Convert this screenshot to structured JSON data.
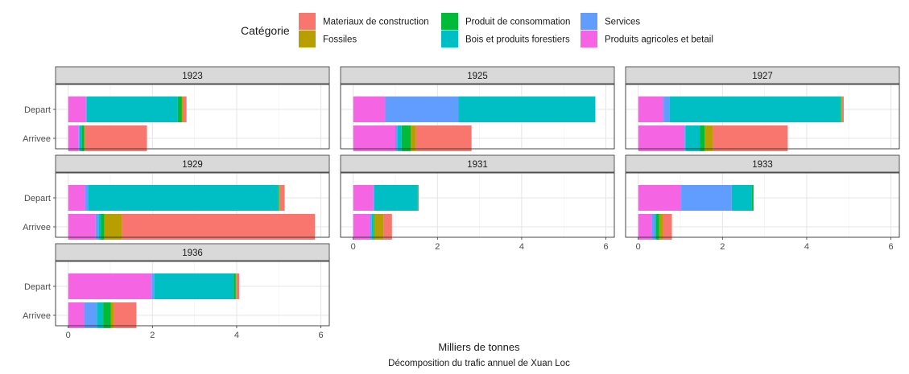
{
  "chart_data": {
    "type": "bar",
    "orientation": "horizontal",
    "stacked": true,
    "facet_variable": "year",
    "legend": {
      "title": "Catégorie",
      "position": "top",
      "entries": [
        {
          "name": "Materiaux de construction",
          "color": "#F8766D"
        },
        {
          "name": "Fossiles",
          "color": "#B79F00"
        },
        {
          "name": "Produit de consommation",
          "color": "#00BA38"
        },
        {
          "name": "Bois et produits forestiers",
          "color": "#00BFC4"
        },
        {
          "name": "Services",
          "color": "#619CFF"
        },
        {
          "name": "Produits agricoles et betail",
          "color": "#F564E3"
        }
      ]
    },
    "stack_order": [
      "Produits agricoles et betail",
      "Services",
      "Bois et produits forestiers",
      "Produit de consommation",
      "Fossiles",
      "Materiaux de construction"
    ],
    "categories": [
      "Depart",
      "Arrivee"
    ],
    "xlabel": "Milliers de tonnes",
    "caption": "Décomposition du trafic annuel de Xuan Loc",
    "xlim": [
      -0.3,
      6.2
    ],
    "x_ticks": [
      0,
      2,
      4,
      6
    ],
    "grid": true,
    "panels": [
      {
        "year": "1923",
        "bars": {
          "Depart": {
            "Produits agricoles et betail": 0.42,
            "Services": 0.02,
            "Bois et produits forestiers": 2.16,
            "Produit de consommation": 0.1,
            "Fossiles": 0.02,
            "Materiaux de construction": 0.09
          },
          "Arrivee": {
            "Produits agricoles et betail": 0.25,
            "Services": 0.02,
            "Bois et produits forestiers": 0.06,
            "Produit de consommation": 0.05,
            "Fossiles": 0.01,
            "Materiaux de construction": 1.48
          }
        }
      },
      {
        "year": "1925",
        "bars": {
          "Depart": {
            "Produits agricoles et betail": 0.76,
            "Services": 1.74,
            "Bois et produits forestiers": 3.25,
            "Produit de consommation": 0.0,
            "Fossiles": 0.0,
            "Materiaux de construction": 0.0
          },
          "Arrivee": {
            "Produits agricoles et betail": 1.0,
            "Services": 0.05,
            "Bois et produits forestiers": 0.1,
            "Produit de consommation": 0.22,
            "Fossiles": 0.12,
            "Materiaux de construction": 1.32
          }
        }
      },
      {
        "year": "1927",
        "bars": {
          "Depart": {
            "Produits agricoles et betail": 0.6,
            "Services": 0.15,
            "Bois et produits forestiers": 4.05,
            "Produit de consommation": 0.02,
            "Fossiles": 0.01,
            "Materiaux de construction": 0.05
          },
          "Arrivee": {
            "Produits agricoles et betail": 1.1,
            "Services": 0.02,
            "Bois et produits forestiers": 0.34,
            "Produit de consommation": 0.12,
            "Fossiles": 0.2,
            "Materiaux de construction": 1.77
          }
        }
      },
      {
        "year": "1929",
        "bars": {
          "Depart": {
            "Produits agricoles et betail": 0.4,
            "Services": 0.07,
            "Bois et produits forestiers": 4.52,
            "Produit de consommation": 0.02,
            "Fossiles": 0.01,
            "Materiaux de construction": 0.12
          },
          "Arrivee": {
            "Produits agricoles et betail": 0.65,
            "Services": 0.07,
            "Bois et produits forestiers": 0.06,
            "Produit de consommation": 0.08,
            "Fossiles": 0.42,
            "Materiaux de construction": 4.58
          }
        }
      },
      {
        "year": "1931",
        "bars": {
          "Depart": {
            "Produits agricoles et betail": 0.47,
            "Services": 0.03,
            "Bois et produits forestiers": 1.03,
            "Produit de consommation": 0.02,
            "Fossiles": 0.0,
            "Materiaux de construction": 0.0
          },
          "Arrivee": {
            "Produits agricoles et betail": 0.4,
            "Services": 0.04,
            "Bois et produits forestiers": 0.04,
            "Produit de consommation": 0.02,
            "Fossiles": 0.22,
            "Materiaux de construction": 0.2
          }
        }
      },
      {
        "year": "1933",
        "bars": {
          "Depart": {
            "Produits agricoles et betail": 1.02,
            "Services": 1.2,
            "Bois et produits forestiers": 0.48,
            "Produit de consommation": 0.03,
            "Fossiles": 0.01,
            "Materiaux de construction": 0.0
          },
          "Arrivee": {
            "Produits agricoles et betail": 0.33,
            "Services": 0.06,
            "Bois et produits forestiers": 0.03,
            "Produit de consommation": 0.08,
            "Fossiles": 0.08,
            "Materiaux de construction": 0.22
          }
        }
      },
      {
        "year": "1936",
        "bars": {
          "Depart": {
            "Produits agricoles et betail": 1.98,
            "Services": 0.07,
            "Bois et produits forestiers": 1.88,
            "Produit de consommation": 0.05,
            "Fossiles": 0.01,
            "Materiaux de construction": 0.07
          },
          "Arrivee": {
            "Produits agricoles et betail": 0.38,
            "Services": 0.3,
            "Bois et produits forestiers": 0.15,
            "Produit de consommation": 0.18,
            "Fossiles": 0.08,
            "Materiaux de construction": 0.53
          }
        }
      }
    ]
  }
}
